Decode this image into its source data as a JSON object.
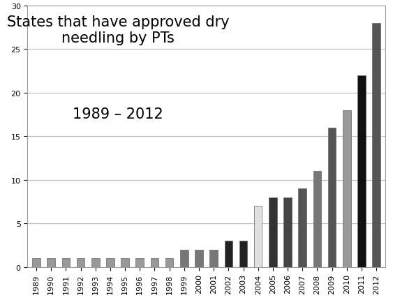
{
  "chart_data": {
    "type": "bar",
    "title": "States that have approved dry needling by PTs",
    "subtitle": "1989 – 2012",
    "categories": [
      "1989",
      "1990",
      "1991",
      "1992",
      "1993",
      "1994",
      "1995",
      "1996",
      "1997",
      "1998",
      "1999",
      "2000",
      "2001",
      "2002",
      "2003",
      "2004",
      "2005",
      "2006",
      "2007",
      "2008",
      "2009",
      "2010",
      "2011",
      "2012"
    ],
    "values": [
      1,
      1,
      1,
      1,
      1,
      1,
      1,
      1,
      1,
      1,
      2,
      2,
      2,
      3,
      3,
      7,
      8,
      8,
      9,
      11,
      16,
      18,
      22,
      28
    ],
    "colors": [
      "#999999",
      "#999999",
      "#999999",
      "#999999",
      "#999999",
      "#999999",
      "#999999",
      "#999999",
      "#999999",
      "#999999",
      "#777777",
      "#777777",
      "#777777",
      "#222222",
      "#222222",
      "#e0e0e0",
      "#333333",
      "#444444",
      "#555555",
      "#777777",
      "#555555",
      "#999999",
      "#111111",
      "#555555"
    ],
    "ylim": [
      0,
      30
    ],
    "yticks": [
      0,
      5,
      10,
      15,
      20,
      25,
      30
    ],
    "grid": true
  }
}
